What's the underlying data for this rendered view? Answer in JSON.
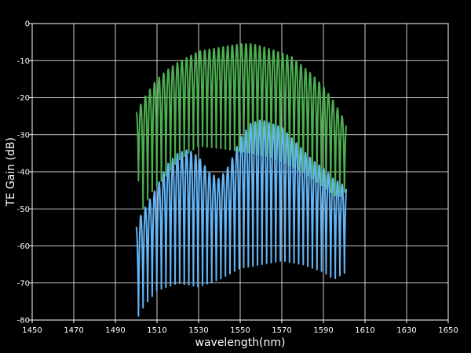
{
  "chart_data": {
    "type": "line",
    "title": "",
    "xlabel": "wavelength(nm)",
    "ylabel": "TE Gain (dB)",
    "xlim": [
      1450,
      1650
    ],
    "ylim": [
      -80,
      0
    ],
    "xticks": [
      1450,
      1470,
      1490,
      1510,
      1530,
      1550,
      1570,
      1590,
      1610,
      1630,
      1650
    ],
    "yticks": [
      -80,
      -70,
      -60,
      -50,
      -40,
      -30,
      -20,
      -10,
      0
    ],
    "ytick_labels": [
      "-80",
      "-70",
      "-60",
      "-50",
      "-40",
      "-30",
      "-20",
      "-10",
      "0"
    ],
    "grid": true,
    "background": "#000000",
    "series": [
      {
        "color": "#4caf50",
        "x_start": 1500,
        "x_end": 1601,
        "fringe_period": 2.2,
        "envelope_upper": [
          [
            1500,
            -24
          ],
          [
            1505,
            -19
          ],
          [
            1510,
            -15
          ],
          [
            1515,
            -12.5
          ],
          [
            1520,
            -10.5
          ],
          [
            1530,
            -7.5
          ],
          [
            1540,
            -6.5
          ],
          [
            1550,
            -5.5
          ],
          [
            1556,
            -5.5
          ],
          [
            1565,
            -7
          ],
          [
            1575,
            -9
          ],
          [
            1585,
            -14
          ],
          [
            1590,
            -17
          ],
          [
            1595,
            -21
          ],
          [
            1598,
            -24
          ],
          [
            1601,
            -27
          ]
        ],
        "envelope_lower": [
          [
            1500,
            -38
          ],
          [
            1503,
            -50
          ],
          [
            1508,
            -45
          ],
          [
            1513,
            -42
          ],
          [
            1520,
            -37
          ],
          [
            1530,
            -33
          ],
          [
            1545,
            -34
          ],
          [
            1556,
            -35
          ],
          [
            1565,
            -36
          ],
          [
            1580,
            -40
          ],
          [
            1590,
            -44
          ],
          [
            1597,
            -47
          ],
          [
            1601,
            -45
          ]
        ]
      },
      {
        "color": "#64b5f6",
        "x_start": 1500,
        "x_end": 1601,
        "fringe_period": 2.2,
        "envelope_upper": [
          [
            1500,
            -55
          ],
          [
            1502,
            -52
          ],
          [
            1506,
            -48
          ],
          [
            1510,
            -44
          ],
          [
            1515,
            -38
          ],
          [
            1520,
            -35
          ],
          [
            1525,
            -34
          ],
          [
            1530,
            -36
          ],
          [
            1535,
            -40
          ],
          [
            1540,
            -42
          ],
          [
            1545,
            -38
          ],
          [
            1550,
            -31
          ],
          [
            1555,
            -27
          ],
          [
            1560,
            -26
          ],
          [
            1565,
            -27
          ],
          [
            1570,
            -28
          ],
          [
            1575,
            -31
          ],
          [
            1580,
            -34
          ],
          [
            1585,
            -37
          ],
          [
            1590,
            -39
          ],
          [
            1595,
            -42
          ],
          [
            1601,
            -44
          ]
        ],
        "envelope_lower": [
          [
            1500,
            -80
          ],
          [
            1504,
            -76
          ],
          [
            1510,
            -72
          ],
          [
            1520,
            -70
          ],
          [
            1530,
            -71
          ],
          [
            1540,
            -69
          ],
          [
            1550,
            -66
          ],
          [
            1560,
            -65
          ],
          [
            1570,
            -64
          ],
          [
            1580,
            -65
          ],
          [
            1590,
            -67
          ],
          [
            1595,
            -69
          ],
          [
            1601,
            -67
          ]
        ]
      }
    ]
  }
}
